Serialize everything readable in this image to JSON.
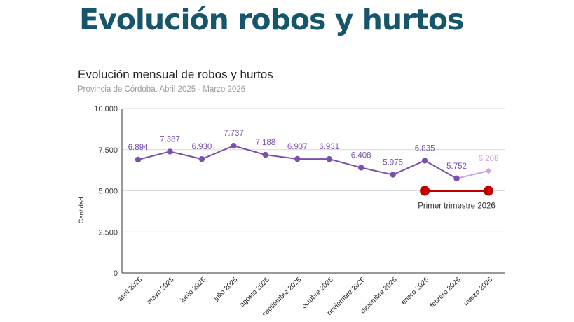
{
  "page": {
    "title": "Evolución robos y hurtos"
  },
  "chart_data": {
    "type": "line",
    "title": "Evolución mensual de robos y hurtos",
    "subtitle": "Provincia de Córdoba. Abril 2025 - Marzo 2026",
    "ylabel": "Cantidad",
    "xlabel": "",
    "ylim": [
      0,
      10000
    ],
    "yticks": [
      {
        "value": 0,
        "label": "0"
      },
      {
        "value": 2500,
        "label": "2.500"
      },
      {
        "value": 5000,
        "label": "5.000"
      },
      {
        "value": 7500,
        "label": "7.500"
      },
      {
        "value": 10000,
        "label": "10.000"
      }
    ],
    "grid": true,
    "categories": [
      "abril 2025",
      "mayo 2025",
      "junio 2025",
      "julio 2025",
      "agosto 2025",
      "septiembre 2025",
      "octubre 2025",
      "noviembre 2025",
      "diciembre 2025",
      "enero 2026",
      "febrero 2026",
      "marzo 2026"
    ],
    "series": [
      {
        "values": [
          6894,
          7387,
          6930,
          7737,
          7188,
          6937,
          6931,
          6408,
          5975,
          6835,
          5752,
          6208
        ],
        "labels": [
          "6.894",
          "7.387",
          "6.930",
          "7.737",
          "7.188",
          "6.937",
          "6.931",
          "6.408",
          "5.975",
          "6.835",
          "5.752",
          "6.208"
        ],
        "color": "#7b4fb0",
        "last_point_color": "#c9a3ea"
      }
    ],
    "annotation": {
      "label": "Primer trimestre 2026",
      "from_category": "enero 2026",
      "to_category": "marzo 2026",
      "value": 5000,
      "color": "#c00000"
    },
    "colors": {
      "axis_text": "#333333",
      "grid": "#d9d9d9",
      "axis_line": "#333333"
    }
  }
}
